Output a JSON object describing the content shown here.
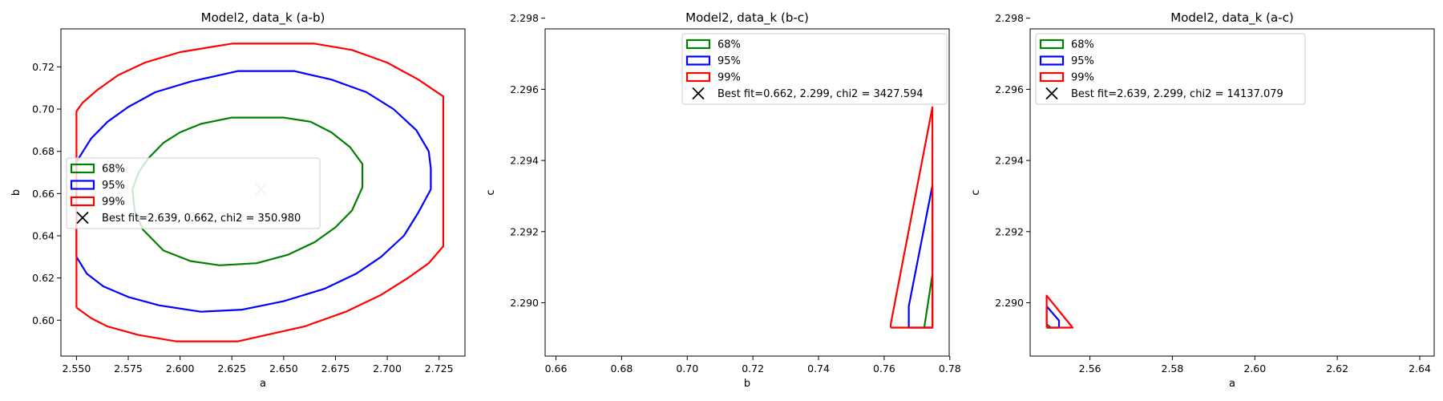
{
  "chart_data": [
    {
      "type": "line",
      "title": "Model2, data_k (a-b)",
      "xlabel": "a",
      "ylabel": "b",
      "xlim": [
        2.5425,
        2.7375
      ],
      "ylim": [
        0.583,
        0.738
      ],
      "xticks": [
        2.55,
        2.575,
        2.6,
        2.625,
        2.65,
        2.675,
        2.7,
        2.725
      ],
      "xtick_labels": [
        "2.550",
        "2.575",
        "2.600",
        "2.625",
        "2.650",
        "2.675",
        "2.700",
        "2.725"
      ],
      "yticks": [
        0.6,
        0.62,
        0.64,
        0.66,
        0.68,
        0.7,
        0.72
      ],
      "ytick_labels": [
        "0.60",
        "0.62",
        "0.64",
        "0.66",
        "0.68",
        "0.70",
        "0.72"
      ],
      "legend_position": "center-left",
      "series": [
        {
          "name": "68%",
          "color": "#008000",
          "points": [
            [
              2.577,
              0.662
            ],
            [
              2.58,
              0.67
            ],
            [
              2.585,
              0.677
            ],
            [
              2.592,
              0.684
            ],
            [
              2.6,
              0.689
            ],
            [
              2.61,
              0.693
            ],
            [
              2.625,
              0.696
            ],
            [
              2.65,
              0.696
            ],
            [
              2.663,
              0.694
            ],
            [
              2.673,
              0.689
            ],
            [
              2.682,
              0.682
            ],
            [
              2.688,
              0.674
            ],
            [
              2.688,
              0.663
            ],
            [
              2.683,
              0.652
            ],
            [
              2.675,
              0.644
            ],
            [
              2.665,
              0.637
            ],
            [
              2.652,
              0.631
            ],
            [
              2.637,
              0.627
            ],
            [
              2.619,
              0.626
            ],
            [
              2.605,
              0.628
            ],
            [
              2.592,
              0.633
            ],
            [
              2.582,
              0.643
            ],
            [
              2.578,
              0.652
            ],
            [
              2.577,
              0.662
            ]
          ]
        },
        {
          "name": "95%",
          "color": "#0000ff",
          "points": [
            [
              2.55,
              0.63
            ],
            [
              2.55,
              0.675
            ],
            [
              2.557,
              0.686
            ],
            [
              2.565,
              0.694
            ],
            [
              2.575,
              0.701
            ],
            [
              2.588,
              0.708
            ],
            [
              2.605,
              0.713
            ],
            [
              2.628,
              0.718
            ],
            [
              2.655,
              0.718
            ],
            [
              2.673,
              0.714
            ],
            [
              2.69,
              0.708
            ],
            [
              2.703,
              0.7
            ],
            [
              2.714,
              0.69
            ],
            [
              2.72,
              0.68
            ],
            [
              2.721,
              0.672
            ],
            [
              2.721,
              0.662
            ],
            [
              2.715,
              0.651
            ],
            [
              2.708,
              0.64
            ],
            [
              2.697,
              0.63
            ],
            [
              2.685,
              0.622
            ],
            [
              2.67,
              0.615
            ],
            [
              2.65,
              0.609
            ],
            [
              2.63,
              0.605
            ],
            [
              2.61,
              0.604
            ],
            [
              2.59,
              0.607
            ],
            [
              2.575,
              0.611
            ],
            [
              2.563,
              0.616
            ],
            [
              2.555,
              0.622
            ],
            [
              2.55,
              0.63
            ]
          ]
        },
        {
          "name": "99%",
          "color": "#ff0000",
          "points": [
            [
              2.55,
              0.606
            ],
            [
              2.55,
              0.699
            ],
            [
              2.553,
              0.703
            ],
            [
              2.56,
              0.709
            ],
            [
              2.57,
              0.716
            ],
            [
              2.583,
              0.722
            ],
            [
              2.6,
              0.727
            ],
            [
              2.625,
              0.731
            ],
            [
              2.665,
              0.731
            ],
            [
              2.683,
              0.728
            ],
            [
              2.7,
              0.722
            ],
            [
              2.715,
              0.714
            ],
            [
              2.727,
              0.706
            ],
            [
              2.727,
              0.635
            ],
            [
              2.72,
              0.627
            ],
            [
              2.71,
              0.62
            ],
            [
              2.697,
              0.612
            ],
            [
              2.68,
              0.604
            ],
            [
              2.66,
              0.597
            ],
            [
              2.628,
              0.59
            ],
            [
              2.598,
              0.59
            ],
            [
              2.58,
              0.593
            ],
            [
              2.565,
              0.597
            ],
            [
              2.557,
              0.601
            ],
            [
              2.55,
              0.606
            ]
          ]
        }
      ],
      "best_fit": {
        "x": 2.639,
        "y": 0.662,
        "label": "Best fit=2.639, 0.662, chi2 = 350.980",
        "color": "#c8c8c8"
      }
    },
    {
      "type": "line",
      "title": "Model2, data_k (b-c)",
      "xlabel": "b",
      "ylabel": "c",
      "xlim": [
        0.6567,
        0.7798
      ],
      "ylim": [
        2.2885,
        2.2977
      ],
      "xticks": [
        0.66,
        0.68,
        0.7,
        0.72,
        0.74,
        0.76,
        0.78
      ],
      "xtick_labels": [
        "0.66",
        "0.68",
        "0.70",
        "0.72",
        "0.74",
        "0.76",
        "0.78"
      ],
      "yticks": [
        2.29,
        2.292,
        2.294,
        2.296,
        2.298
      ],
      "ytick_labels": [
        "2.290",
        "2.292",
        "2.294",
        "2.296",
        "2.298"
      ],
      "legend_position": "upper-center",
      "series": [
        {
          "name": "68%",
          "color": "#008000",
          "points": [
            [
              0.7722,
              2.2893
            ],
            [
              0.7747,
              2.2893
            ],
            [
              0.7747,
              2.2908
            ],
            [
              0.7722,
              2.2893
            ]
          ]
        },
        {
          "name": "95%",
          "color": "#0000ff",
          "points": [
            [
              0.7675,
              2.2893
            ],
            [
              0.7675,
              2.2899
            ],
            [
              0.7747,
              2.2933
            ],
            [
              0.7747,
              2.2893
            ],
            [
              0.7675,
              2.2893
            ]
          ]
        },
        {
          "name": "99%",
          "color": "#ff0000",
          "points": [
            [
              0.762,
              2.2893
            ],
            [
              0.7747,
              2.2893
            ],
            [
              0.7747,
              2.2955
            ],
            [
              0.762,
              2.2894
            ],
            [
              0.762,
              2.2893
            ]
          ]
        }
      ],
      "best_fit": {
        "x": 0.662,
        "y": 2.299,
        "label": "Best fit=0.662, 2.299, chi2 = 3427.594",
        "color": "#000000"
      }
    },
    {
      "type": "line",
      "title": "Model2, data_k (a-c)",
      "xlabel": "a",
      "ylabel": "c",
      "xlim": [
        2.5455,
        2.6435
      ],
      "ylim": [
        2.2885,
        2.2977
      ],
      "xticks": [
        2.56,
        2.58,
        2.6,
        2.62,
        2.64
      ],
      "xtick_labels": [
        "2.56",
        "2.58",
        "2.60",
        "2.62",
        "2.64"
      ],
      "yticks": [
        2.29,
        2.292,
        2.294,
        2.296,
        2.298
      ],
      "ytick_labels": [
        "2.290",
        "2.292",
        "2.294",
        "2.296",
        "2.298"
      ],
      "legend_position": "upper-left",
      "series": [
        {
          "name": "68%",
          "color": "#008000",
          "points": [
            [
              2.5495,
              2.2893
            ],
            [
              2.5505,
              2.2893
            ],
            [
              2.5495,
              2.2894
            ],
            [
              2.5495,
              2.2893
            ]
          ]
        },
        {
          "name": "95%",
          "color": "#0000ff",
          "points": [
            [
              2.5495,
              2.2893
            ],
            [
              2.5525,
              2.2893
            ],
            [
              2.5525,
              2.2895
            ],
            [
              2.5495,
              2.2899
            ],
            [
              2.5495,
              2.2893
            ]
          ]
        },
        {
          "name": "99%",
          "color": "#ff0000",
          "points": [
            [
              2.5495,
              2.2893
            ],
            [
              2.5558,
              2.2893
            ],
            [
              2.5495,
              2.2902
            ],
            [
              2.5495,
              2.2893
            ]
          ]
        }
      ],
      "best_fit": {
        "x": 2.639,
        "y": 2.299,
        "label": "Best fit=2.639, 2.299, chi2 = 14137.079",
        "color": "#000000"
      }
    }
  ]
}
